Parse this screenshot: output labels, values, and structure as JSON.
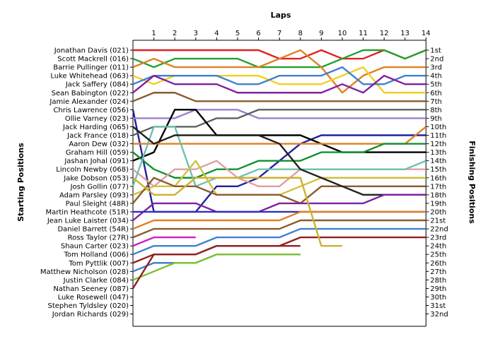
{
  "chart_data": {
    "type": "line",
    "title": "Laps",
    "left_label": "Starting Positions",
    "right_label": "Finishing Positions",
    "x_ticks": [
      1,
      2,
      3,
      4,
      5,
      6,
      7,
      8,
      9,
      10,
      11,
      12,
      13,
      14
    ],
    "drivers": [
      "Jonathan Davis (021)",
      "Scott Mackrell (016)",
      "Barrie Pullinger (011)",
      "Luke Whitehead (063)",
      "Jack Saffery (084)",
      "Sean Babington (022)",
      "Jamie Alexander (024)",
      "Chris Lawrence (056)",
      "Ollie Varney (023)",
      "Jack Harding (065)",
      "Jack France (018)",
      "Aaron Dew (032)",
      "Graham Hill (059)",
      "Jashan Johal (091)",
      "Lincoln Newby (068)",
      "Jake Dobson (053)",
      "Josh Gollin (077)",
      "Adam Parsley (093)",
      "Paul Sleight (48R)",
      "Martin Heathcote (51R)",
      "Jean Luke Laister (034)",
      "Daniel Barrett (54R)",
      "Ross Taylor (27R)",
      "Shaun Carter (023)",
      "Tom Holland (006)",
      "Tom Pyttlik (007)",
      "Matthew Nicholson (028)",
      "Justin Clarke (084)",
      "Nathan Seeney (087)",
      "Luke Rosewell (047)",
      "Stephen Tyldsley (020)",
      "Jordan Richards (029)"
    ],
    "finishing": [
      "1st",
      "2nd",
      "3rd",
      "4th",
      "5th",
      "6th",
      "7th",
      "8th",
      "9th",
      "10th",
      "11th",
      "12th",
      "13th",
      "14th",
      "15th",
      "16th",
      "17th",
      "18th",
      "19th",
      "20th",
      "21st",
      "22nd",
      "23rd",
      "24th",
      "25th",
      "26th",
      "27th",
      "28th",
      "29th",
      "30th",
      "31st",
      "32nd"
    ],
    "series": [
      {
        "color": "#e02020",
        "positions": [
          1,
          1,
          1,
          1,
          1,
          1,
          1,
          2,
          2,
          1,
          2,
          2,
          1,
          2,
          1
        ]
      },
      {
        "color": "#22a030",
        "positions": [
          2,
          3,
          2,
          2,
          2,
          2,
          3,
          3,
          3,
          3,
          2,
          1,
          1,
          2,
          1
        ]
      },
      {
        "color": "#e08020",
        "positions": [
          3,
          2,
          3,
          3,
          3,
          3,
          3,
          2,
          1,
          3,
          6,
          4,
          3,
          3,
          3
        ]
      },
      {
        "color": "#f0d020",
        "positions": [
          4,
          5,
          4,
          4,
          4,
          4,
          4,
          5,
          5,
          5,
          4,
          3,
          6,
          6,
          6
        ]
      },
      {
        "color": "#4080d0",
        "positions": [
          5,
          4,
          4,
          4,
          4,
          5,
          5,
          4,
          4,
          4,
          3,
          5,
          5,
          4,
          4
        ]
      },
      {
        "color": "#8020a0",
        "positions": [
          6,
          4,
          5,
          5,
          5,
          6,
          6,
          6,
          6,
          6,
          5,
          6,
          4,
          5,
          5
        ]
      },
      {
        "color": "#8b5a2b",
        "positions": [
          7,
          6,
          6,
          7,
          7,
          7,
          7,
          7,
          7,
          7,
          7,
          7,
          7,
          7,
          7
        ]
      },
      {
        "color": "#2020a0",
        "positions": [
          8,
          20,
          20,
          20,
          17,
          17,
          16,
          14,
          12,
          11,
          11,
          11,
          11,
          11,
          11
        ]
      },
      {
        "color": "#9a80d0",
        "positions": [
          9,
          9,
          9,
          8,
          8,
          8,
          9,
          9,
          9,
          9,
          9,
          9,
          9,
          9,
          9
        ]
      },
      {
        "color": "#606060",
        "positions": [
          11,
          10,
          10,
          10,
          9,
          9,
          8,
          8,
          8,
          8,
          8,
          8,
          8,
          8,
          8
        ]
      },
      {
        "color": "#000000",
        "positions": [
          14,
          13,
          8,
          8,
          11,
          11,
          11,
          11,
          11,
          12,
          13,
          13,
          13,
          13,
          13
        ]
      },
      {
        "color": "#e08020",
        "positions": [
          12,
          12,
          12,
          12,
          12,
          12,
          12,
          12,
          12,
          12,
          12,
          12,
          12,
          12,
          10
        ]
      },
      {
        "color": "#109030",
        "positions": [
          13,
          15,
          16,
          16,
          15,
          15,
          14,
          14,
          14,
          13,
          13,
          13,
          12,
          12,
          12
        ]
      },
      {
        "color": "#e0a0a0",
        "positions": [
          15,
          17,
          15,
          15,
          14,
          16,
          17,
          17,
          15,
          15,
          15,
          15,
          15,
          15,
          15
        ]
      },
      {
        "color": "#70c0b0",
        "positions": [
          17,
          10,
          10,
          17,
          16,
          16,
          15,
          15,
          15,
          15,
          15,
          15,
          15,
          15,
          14
        ]
      },
      {
        "color": "#d0c040",
        "positions": [
          18,
          17,
          17,
          14,
          18,
          18,
          18,
          18,
          17,
          16,
          16,
          16,
          16,
          16,
          16
        ]
      },
      {
        "color": "#8b5a2b",
        "positions": [
          19,
          16,
          17,
          17,
          18,
          18,
          18,
          18,
          19,
          17,
          17,
          17,
          17,
          17,
          17
        ]
      },
      {
        "color": "#202020",
        "positions": [
          10,
          12,
          11,
          11,
          11,
          11,
          11,
          12,
          15,
          16,
          17,
          18,
          18,
          18,
          18
        ]
      },
      {
        "color": "#8020a0",
        "positions": [
          21,
          19,
          19,
          19,
          20,
          20,
          20,
          19,
          19,
          19,
          19,
          19,
          18,
          18,
          18
        ]
      },
      {
        "color": "#3030c0",
        "positions": [
          20,
          20,
          20,
          20,
          20,
          20,
          20,
          20,
          20,
          20,
          20,
          20,
          20,
          20,
          20
        ]
      },
      {
        "color": "#e08020",
        "positions": [
          22,
          21,
          21,
          21,
          21,
          21,
          21,
          21,
          20,
          20,
          20,
          20,
          20,
          20,
          20
        ]
      },
      {
        "color": "#8b5a2b",
        "positions": [
          23,
          22,
          22,
          22,
          22,
          22,
          22,
          22,
          21,
          21,
          21,
          21,
          21,
          21,
          21
        ]
      },
      {
        "color": "#d020c0",
        "positions": [
          24,
          23,
          23,
          23
        ]
      },
      {
        "color": "#4080d0",
        "positions": [
          25,
          24,
          24,
          24,
          23,
          23,
          23,
          23,
          22,
          22,
          22,
          22,
          22,
          22,
          22
        ]
      },
      {
        "color": "#902020",
        "positions": [
          26,
          25,
          25,
          25,
          24,
          24,
          24,
          24,
          23,
          23,
          23,
          23,
          23,
          23,
          23
        ]
      },
      {
        "color": "#d0b030",
        "positions": [
          16,
          18,
          18,
          16,
          16,
          16,
          16,
          16,
          16,
          24,
          24
        ]
      },
      {
        "color": "#4080d0",
        "positions": [
          27,
          26,
          26,
          26,
          25,
          25,
          25,
          25,
          25
        ]
      },
      {
        "color": "#80c030",
        "positions": [
          28,
          27,
          26,
          26,
          25,
          25,
          25,
          25,
          25
        ]
      },
      {
        "color": "#902020",
        "positions": [
          29,
          25,
          25,
          25,
          24,
          24,
          24,
          24,
          24
        ]
      }
    ]
  }
}
